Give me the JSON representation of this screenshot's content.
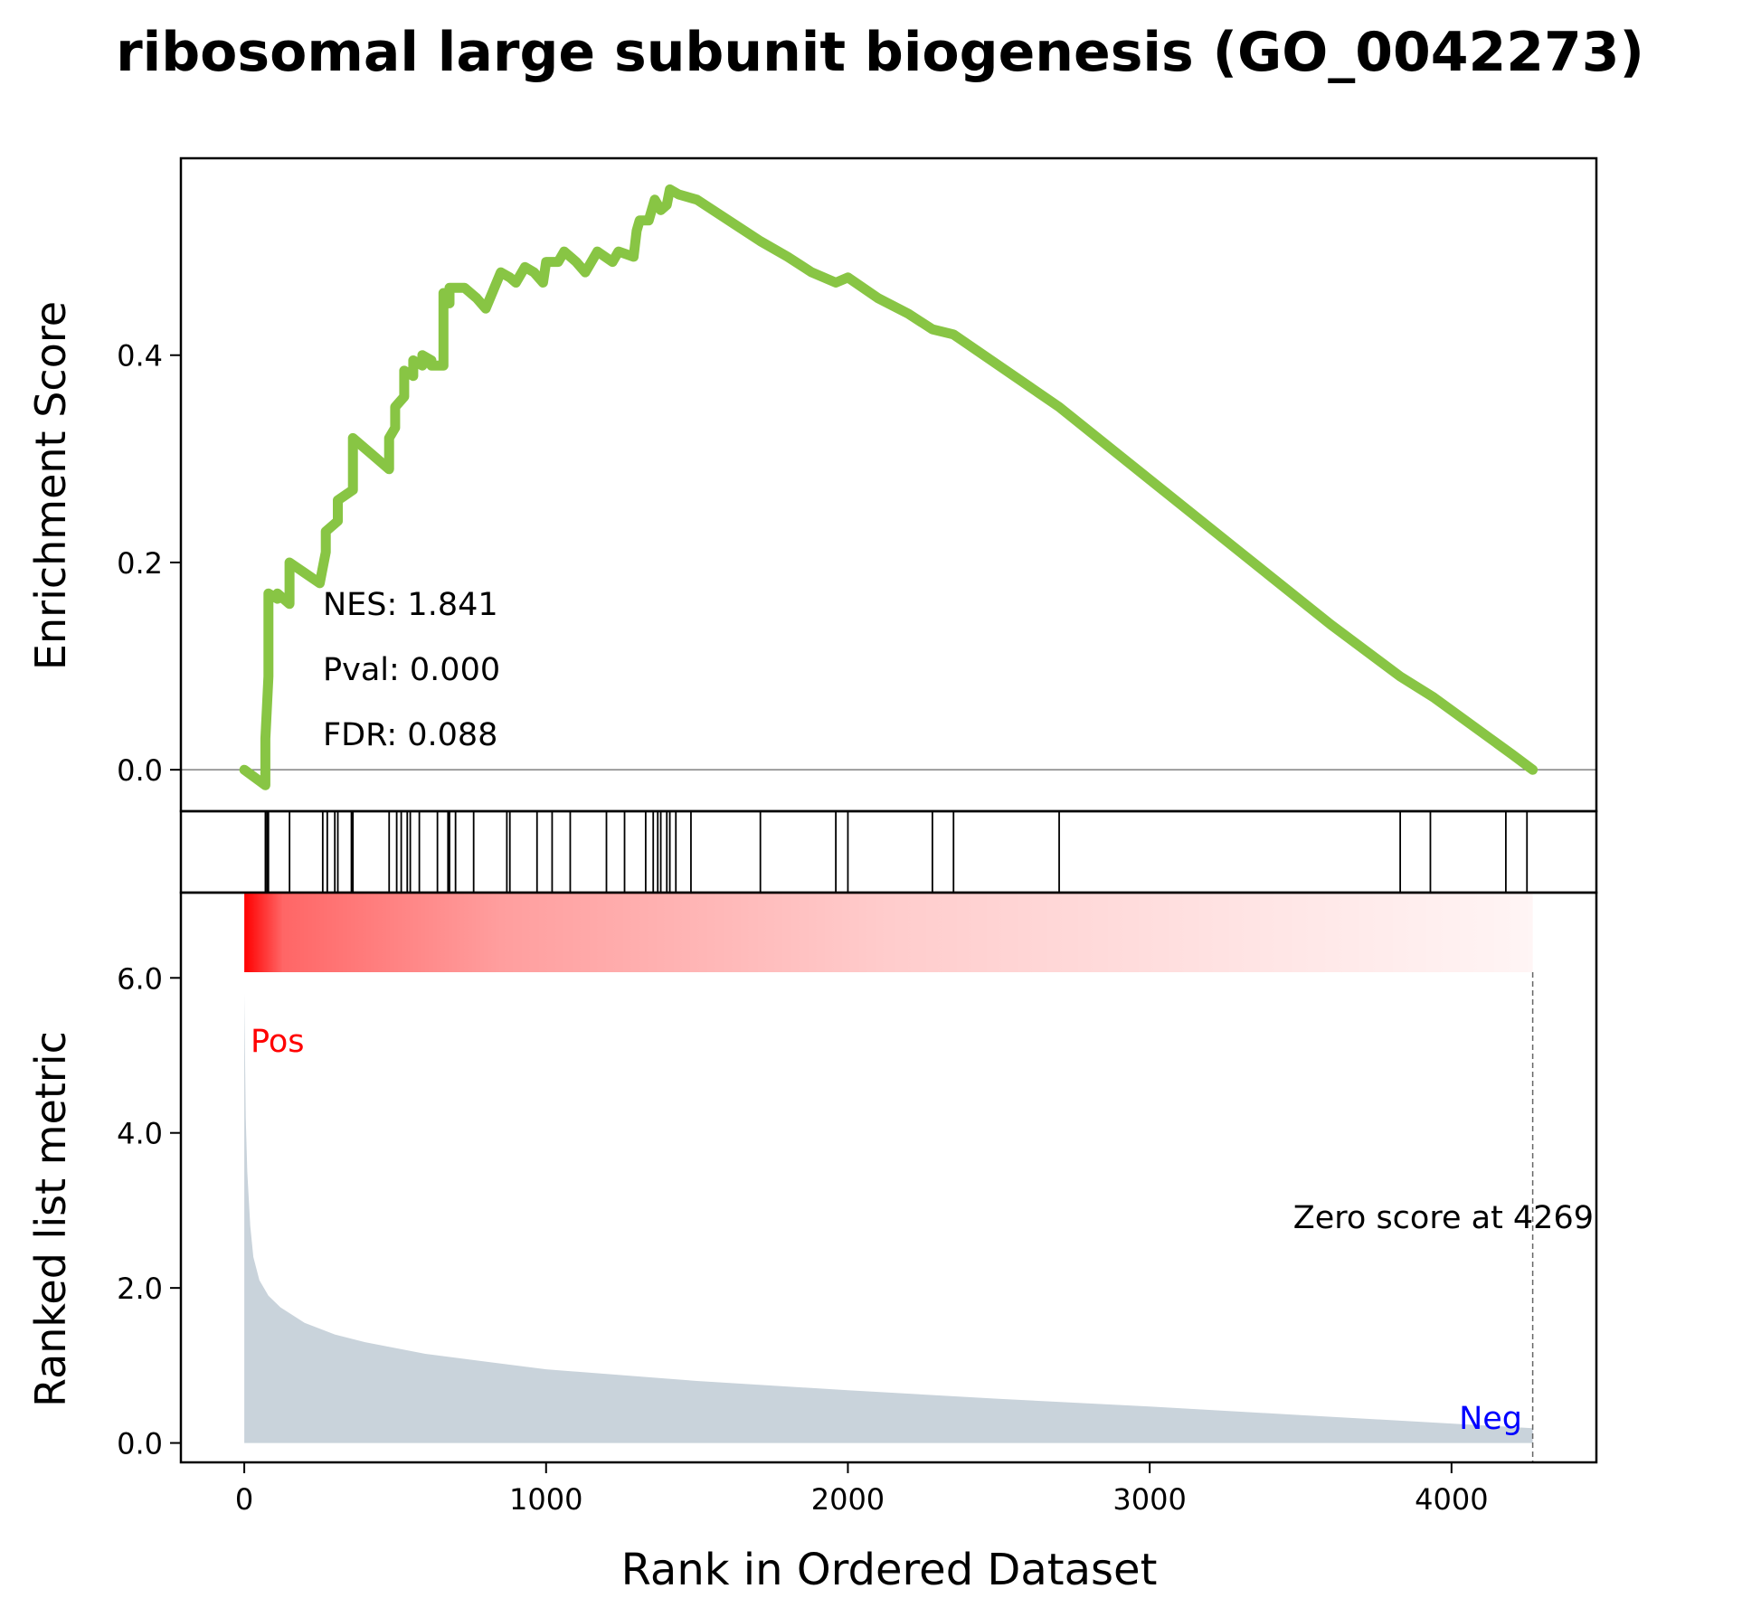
{
  "title": "ribosomal large subunit biogenesis (GO_0042273)",
  "colors": {
    "es_line": "#88c544",
    "hits": "#000000",
    "heat_start": "#ff0000",
    "metric_fill": "#c9d3db",
    "pos_label": "#ff0000",
    "neg_label": "#0000ff",
    "zero_line": "#808080"
  },
  "chart_data": [
    {
      "type": "line",
      "panel": "running-enrichment-score",
      "ylabel": "Enrichment Score",
      "xlim": [
        -210,
        4480
      ],
      "ylim": [
        -0.04,
        0.59
      ],
      "yticks": [
        0.0,
        0.2,
        0.4
      ],
      "ytick_labels": [
        "0.0",
        "0.2",
        "0.4"
      ],
      "grid": false,
      "reference_line_y": 0.0,
      "annotations": [
        "NES: 1.841",
        "Pval: 0.000",
        "FDR: 0.088"
      ],
      "series": [
        {
          "x": [
            0,
            70,
            70,
            80,
            80,
            110,
            110,
            150,
            150,
            200,
            250,
            270,
            270,
            310,
            310,
            360,
            360,
            400,
            420,
            480,
            480,
            500,
            500,
            530,
            530,
            560,
            560,
            590,
            590,
            620,
            620,
            660,
            660,
            680,
            680,
            730,
            770,
            800,
            850,
            880,
            900,
            930,
            960,
            990,
            1000,
            1040,
            1060,
            1100,
            1130,
            1170,
            1220,
            1240,
            1290,
            1300,
            1310,
            1340,
            1360,
            1380,
            1400,
            1410,
            1440,
            1500,
            1710,
            1800,
            1880,
            1960,
            2000,
            2100,
            2200,
            2280,
            2350,
            2700,
            3000,
            3300,
            3600,
            3830,
            3940,
            4200,
            4269
          ],
          "y": [
            0.0,
            -0.015,
            0.03,
            0.09,
            0.17,
            0.165,
            0.17,
            0.16,
            0.2,
            0.19,
            0.18,
            0.21,
            0.23,
            0.24,
            0.26,
            0.27,
            0.32,
            0.31,
            0.305,
            0.29,
            0.32,
            0.33,
            0.35,
            0.36,
            0.385,
            0.38,
            0.395,
            0.39,
            0.4,
            0.395,
            0.39,
            0.39,
            0.46,
            0.45,
            0.465,
            0.465,
            0.455,
            0.445,
            0.48,
            0.475,
            0.47,
            0.485,
            0.48,
            0.47,
            0.49,
            0.49,
            0.5,
            0.49,
            0.48,
            0.5,
            0.49,
            0.5,
            0.495,
            0.52,
            0.53,
            0.53,
            0.55,
            0.54,
            0.545,
            0.56,
            0.555,
            0.55,
            0.51,
            0.495,
            0.48,
            0.47,
            0.475,
            0.455,
            0.44,
            0.425,
            0.42,
            0.35,
            0.28,
            0.21,
            0.14,
            0.09,
            0.07,
            0.015,
            0.0
          ]
        }
      ]
    },
    {
      "type": "scatter",
      "panel": "gene-set-hits",
      "marker": "vertical-line",
      "x": [
        70,
        75,
        80,
        150,
        260,
        275,
        300,
        310,
        355,
        360,
        480,
        505,
        520,
        540,
        550,
        580,
        640,
        675,
        680,
        700,
        760,
        870,
        880,
        970,
        1020,
        1080,
        1200,
        1260,
        1330,
        1355,
        1370,
        1380,
        1400,
        1410,
        1430,
        1480,
        1710,
        1960,
        2000,
        2280,
        2350,
        2700,
        3830,
        3930,
        4180,
        4250
      ]
    },
    {
      "type": "area",
      "panel": "ranked-list-metric",
      "ylabel": "Ranked list metric",
      "xlabel": "Rank in Ordered Dataset",
      "xlim": [
        -210,
        4480
      ],
      "ylim": [
        -0.25,
        7.1
      ],
      "yticks": [
        0.0,
        2.0,
        4.0,
        6.0
      ],
      "ytick_labels": [
        "0.0",
        "2.0",
        "4.0",
        "6.0"
      ],
      "xticks": [
        0,
        1000,
        2000,
        3000,
        4000
      ],
      "xtick_labels": [
        "0",
        "1000",
        "2000",
        "3000",
        "4000"
      ],
      "grid": false,
      "annotations": [
        "Pos",
        "Neg",
        "Zero score at 4269"
      ],
      "zero_score_at": 4269,
      "series": [
        {
          "x": [
            0,
            5,
            10,
            20,
            30,
            50,
            80,
            120,
            200,
            300,
            400,
            600,
            800,
            1000,
            1500,
            2000,
            2500,
            3000,
            3500,
            4000,
            4269
          ],
          "y": [
            5.8,
            4.2,
            3.5,
            2.8,
            2.4,
            2.1,
            1.9,
            1.75,
            1.55,
            1.4,
            1.3,
            1.15,
            1.05,
            0.95,
            0.8,
            0.68,
            0.57,
            0.47,
            0.36,
            0.25,
            0.19
          ]
        }
      ]
    }
  ]
}
